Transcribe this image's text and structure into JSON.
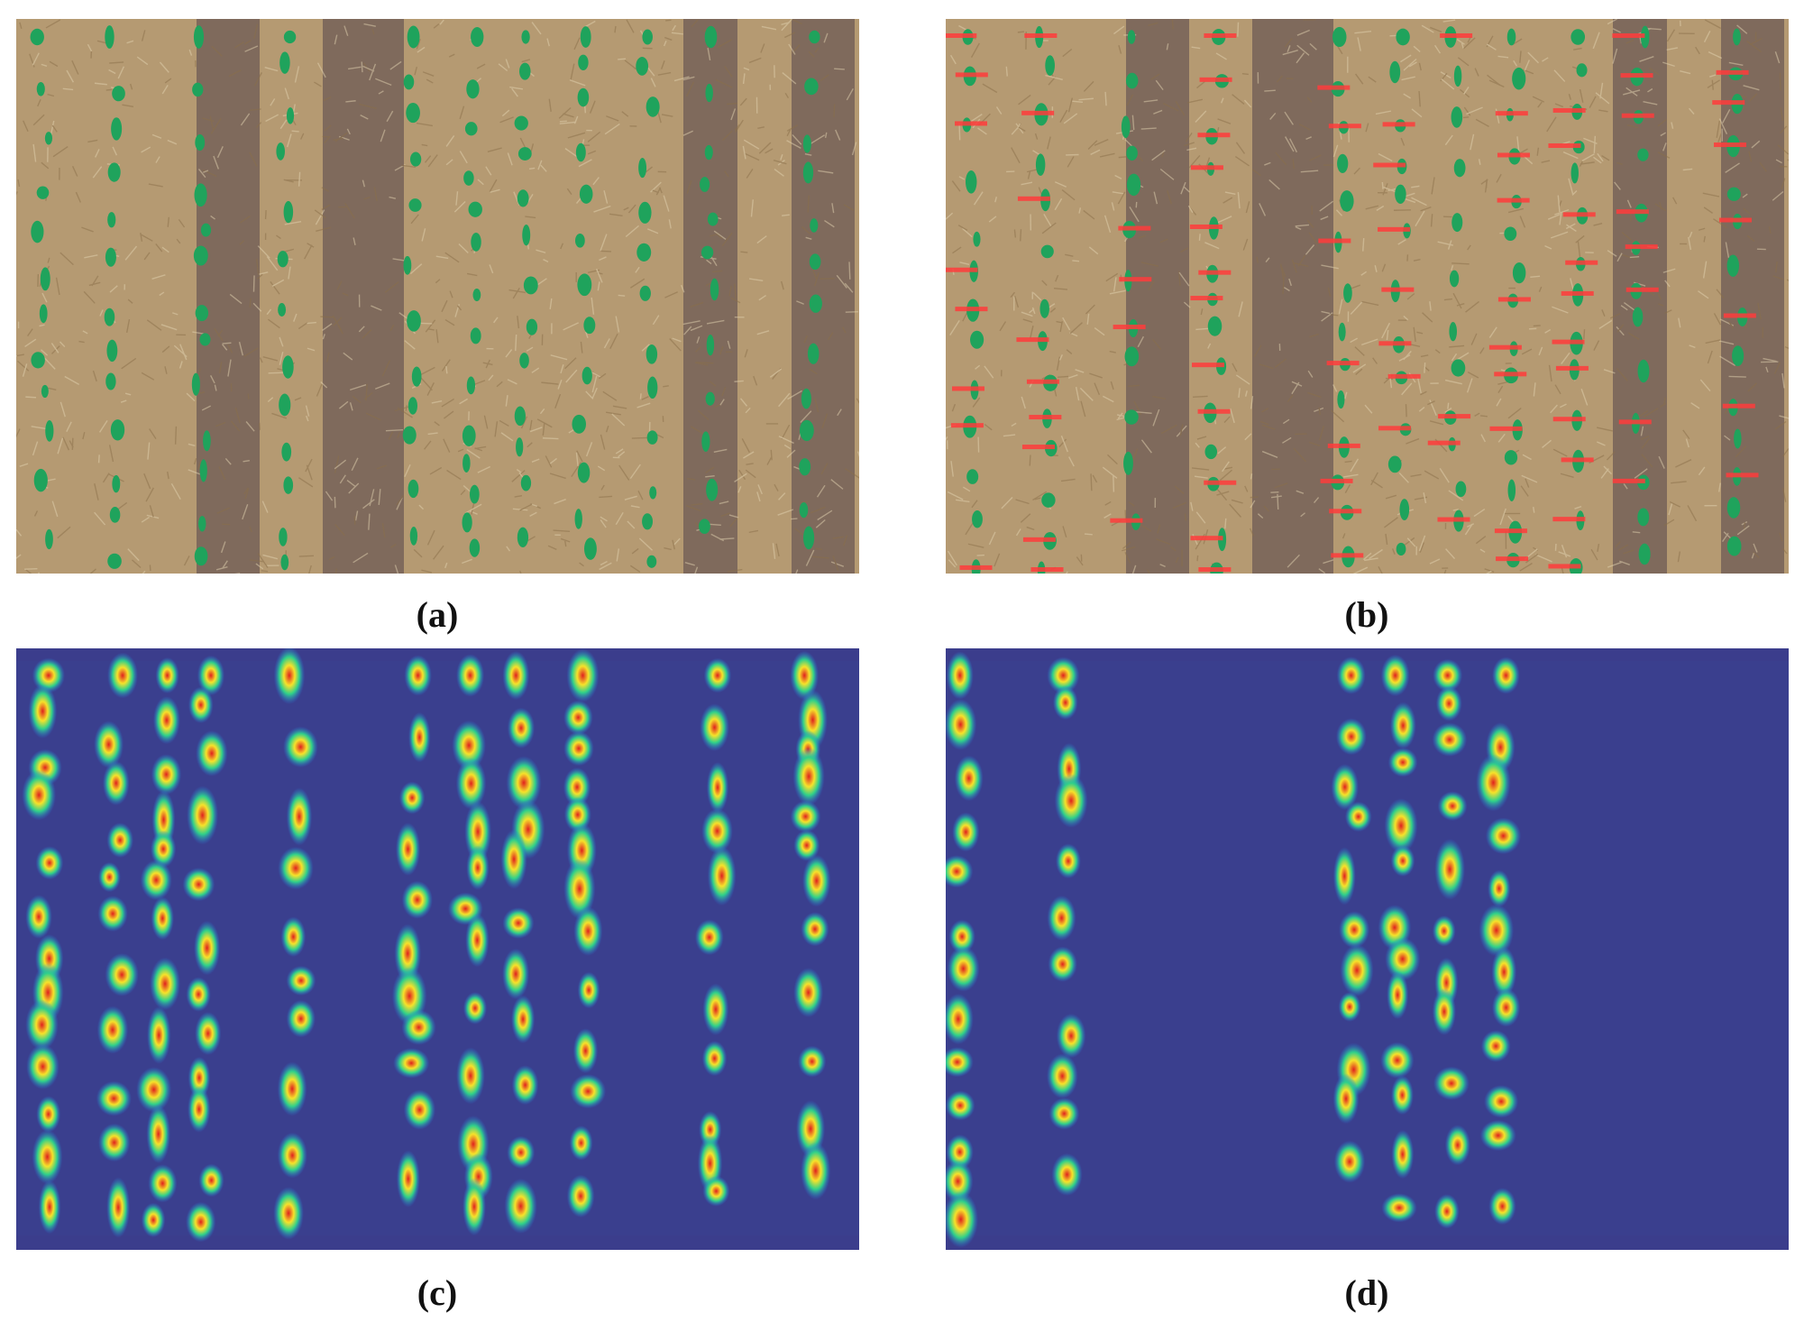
{
  "figure": {
    "panels": [
      {
        "id": "a",
        "caption": "(a)",
        "kind": "field-photo"
      },
      {
        "id": "b",
        "caption": "(b)",
        "kind": "field-photo-with-detections"
      },
      {
        "id": "c",
        "caption": "(c)",
        "kind": "heatmap-overlay"
      },
      {
        "id": "d",
        "caption": "(d)",
        "kind": "heatmap-overlay"
      }
    ]
  },
  "colors": {
    "straw": "#b59a72",
    "soil": "#6d5a55",
    "plant": "#1fa35c",
    "detection": "#ff3b3b",
    "heat_bg": "#3a3f8e",
    "heat_bar": "#3b3d8c"
  }
}
